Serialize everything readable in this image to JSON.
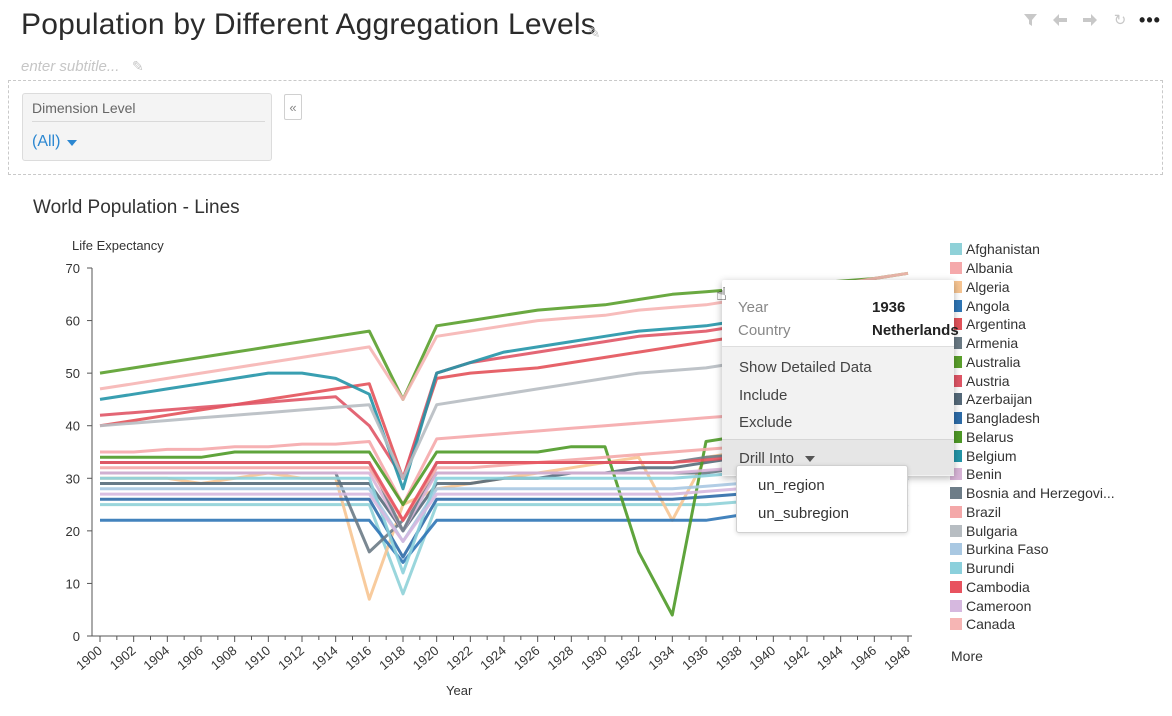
{
  "page": {
    "title": "Population by Different Aggregation Levels",
    "subtitle_placeholder": "enter subtitle...",
    "toolbar": {
      "filter_icon": "filter-icon",
      "back_icon": "back-arrow-icon",
      "forward_icon": "forward-arrow-icon",
      "refresh_icon": "refresh-icon",
      "more_label": "•••"
    }
  },
  "filter": {
    "label": "Dimension Level",
    "value": "(All)",
    "collapse_label": "«"
  },
  "popup": {
    "year_label": "Year",
    "year_value": "1936",
    "country_label": "Country",
    "country_value": "Netherlands",
    "actions": [
      "Show Detailed Data",
      "Include",
      "Exclude"
    ],
    "drill_label": "Drill Into",
    "drill_options": [
      "un_region",
      "un_subregion"
    ]
  },
  "chart_data": {
    "type": "line",
    "title": "World Population - Lines",
    "xlabel": "Year",
    "ylabel": "Life Expectancy",
    "ylim": [
      0,
      70
    ],
    "yticks": [
      "0",
      "10",
      "20",
      "30",
      "40",
      "50",
      "60",
      "70"
    ],
    "xticks": [
      "1900",
      "1902",
      "1904",
      "1906",
      "1908",
      "1910",
      "1912",
      "1914",
      "1916",
      "1918",
      "1920",
      "1922",
      "1924",
      "1926",
      "1928",
      "1930",
      "1932",
      "1934",
      "1936",
      "1938",
      "1940",
      "1942",
      "1944",
      "1946",
      "1948"
    ],
    "x": [
      1900,
      1902,
      1904,
      1906,
      1908,
      1910,
      1912,
      1914,
      1916,
      1918,
      1920,
      1922,
      1924,
      1926,
      1928,
      1930,
      1932,
      1934,
      1936,
      1938,
      1940,
      1942,
      1944,
      1946,
      1948
    ],
    "series": [
      {
        "name": "Afghanistan",
        "color": "#8fd1d8",
        "values": [
          25,
          25,
          25,
          25,
          25,
          25,
          25,
          25,
          25,
          8,
          25,
          25,
          25,
          25,
          25,
          25,
          25,
          25,
          25,
          25.5,
          26,
          26.5,
          27,
          27.5,
          28
        ]
      },
      {
        "name": "Albania",
        "color": "#f5a9ab",
        "values": [
          35,
          35,
          35.5,
          35.5,
          36,
          36,
          36.5,
          36.5,
          37,
          25,
          37.5,
          38,
          38.5,
          39,
          39.5,
          40,
          40.5,
          41,
          41.5,
          42,
          43,
          44,
          45,
          46,
          47
        ]
      },
      {
        "name": "Algeria",
        "color": "#f7c592",
        "values": [
          30,
          30,
          30,
          29,
          30,
          31,
          30,
          30,
          7,
          25,
          28,
          29,
          30,
          31,
          32,
          33,
          34,
          22,
          34,
          35,
          35,
          36,
          37,
          38,
          39
        ]
      },
      {
        "name": "Angola",
        "color": "#2f76b6",
        "values": [
          22,
          22,
          22,
          22,
          22,
          22,
          22,
          22,
          22,
          14,
          22,
          22,
          22,
          22,
          22,
          22,
          22,
          22,
          22,
          23,
          23,
          23.5,
          24,
          24.5,
          25
        ]
      },
      {
        "name": "Argentina",
        "color": "#e3525a",
        "values": [
          40,
          41,
          42,
          43,
          44,
          45,
          46,
          47,
          48,
          30,
          49,
          50,
          50.5,
          51,
          52,
          53,
          54,
          55,
          56,
          57,
          58,
          59,
          60,
          61,
          62
        ]
      },
      {
        "name": "Armenia",
        "color": "#6b7b86",
        "values": [
          31,
          31,
          31,
          31,
          31,
          31,
          31,
          31,
          16,
          22,
          31,
          31,
          31,
          31,
          31,
          31,
          31,
          31,
          31,
          32,
          33,
          34,
          35,
          36,
          37
        ]
      },
      {
        "name": "Australia",
        "color": "#5aa02c",
        "values": [
          50,
          51,
          52,
          53,
          54,
          55,
          56,
          57,
          58,
          45,
          59,
          60,
          61,
          62,
          62.5,
          63,
          64,
          65,
          65.5,
          66,
          66.5,
          67,
          67.5,
          68,
          69
        ]
      },
      {
        "name": "Austria",
        "color": "#e05566",
        "values": [
          42,
          42.5,
          43,
          43.5,
          44,
          44.5,
          45,
          45.5,
          40,
          30,
          50,
          52,
          53,
          54,
          55,
          56,
          57,
          57.5,
          58,
          59,
          60,
          61,
          62,
          63,
          64
        ]
      },
      {
        "name": "Azerbaijan",
        "color": "#566a7a",
        "values": [
          29,
          29,
          29,
          29,
          29,
          29,
          29,
          29,
          29,
          20,
          29,
          29,
          30,
          30,
          31,
          31,
          32,
          32,
          33,
          34,
          35,
          36,
          37,
          38,
          39
        ]
      },
      {
        "name": "Bangladesh",
        "color": "#2d6ca8",
        "values": [
          26,
          26,
          26,
          26,
          26,
          26,
          26,
          26,
          26,
          15,
          26,
          26,
          26,
          26,
          26,
          26,
          26,
          26,
          26.5,
          27,
          27.5,
          28,
          28.5,
          29,
          30
        ]
      },
      {
        "name": "Belarus",
        "color": "#4e9a27",
        "values": [
          34,
          34,
          34,
          34,
          35,
          35,
          35,
          35,
          35,
          25,
          35,
          35,
          35,
          35,
          36,
          36,
          16,
          4,
          37,
          38,
          39,
          40,
          41,
          42,
          43
        ]
      },
      {
        "name": "Belgium",
        "color": "#2395a8",
        "values": [
          45,
          46,
          47,
          48,
          49,
          50,
          50,
          49,
          46,
          28,
          50,
          52,
          54,
          55,
          56,
          57,
          58,
          58.5,
          59,
          60,
          61,
          62,
          63,
          64,
          65
        ]
      },
      {
        "name": "Benin",
        "color": "#d9b5d8",
        "values": [
          31,
          31,
          31,
          31,
          31,
          31,
          31,
          31,
          31,
          20,
          31,
          31,
          31,
          31,
          31,
          31,
          31,
          31,
          31.5,
          32,
          32.5,
          33,
          33.5,
          34,
          35
        ]
      },
      {
        "name": "Bosnia and Herzegovi...",
        "color": "#6d7d88",
        "values": [
          33,
          33,
          33,
          33,
          33,
          33,
          33,
          33,
          33,
          20,
          33,
          33,
          33,
          33,
          33,
          33,
          33,
          33,
          34,
          34.5,
          35,
          36,
          37,
          38,
          39
        ]
      },
      {
        "name": "Brazil",
        "color": "#f4a8a9",
        "values": [
          32,
          32,
          32,
          32,
          32,
          32,
          32,
          32,
          32,
          22,
          32,
          32,
          32.5,
          33,
          33.5,
          34,
          34.5,
          35,
          35.5,
          36,
          37,
          38,
          39,
          40,
          41
        ]
      },
      {
        "name": "Bulgaria",
        "color": "#b7bdc2",
        "values": [
          40,
          40.5,
          41,
          41.5,
          42,
          42.5,
          43,
          43.5,
          44,
          30,
          44,
          45,
          46,
          47,
          48,
          49,
          50,
          50.5,
          51,
          52,
          53,
          54,
          55,
          56,
          57
        ]
      },
      {
        "name": "Burkina Faso",
        "color": "#a9c8e2",
        "values": [
          28,
          28,
          28,
          28,
          28,
          28,
          28,
          28,
          28,
          18,
          28,
          28,
          28,
          28,
          28,
          28,
          28,
          28,
          28.5,
          29,
          29.5,
          30,
          30.5,
          31,
          32
        ]
      },
      {
        "name": "Burundi",
        "color": "#8bd0dc",
        "values": [
          30,
          30,
          30,
          30,
          30,
          30,
          30,
          30,
          30,
          12,
          30,
          30,
          30,
          30,
          30,
          30,
          30,
          30,
          30.5,
          31,
          31.5,
          32,
          32.5,
          33,
          34
        ]
      },
      {
        "name": "Cambodia",
        "color": "#e8535f",
        "values": [
          33,
          33,
          33,
          33,
          33,
          33,
          33,
          33,
          33,
          22,
          33,
          33,
          33,
          33,
          33,
          33,
          33,
          33,
          33.5,
          34,
          34.5,
          35,
          35.5,
          36,
          37
        ]
      },
      {
        "name": "Cameroon",
        "color": "#d6b8df",
        "values": [
          27,
          27,
          27,
          27,
          27,
          27,
          27,
          27,
          27,
          18,
          27,
          27,
          27,
          27,
          27,
          27,
          27,
          27,
          27.5,
          28,
          28.5,
          29,
          29.5,
          30,
          31
        ]
      },
      {
        "name": "Canada",
        "color": "#f6b5b4",
        "values": [
          47,
          48,
          49,
          50,
          51,
          52,
          53,
          54,
          55,
          45,
          57,
          58,
          59,
          60,
          60.5,
          61,
          62,
          62.5,
          63,
          64,
          65,
          66,
          67,
          68,
          69
        ]
      }
    ],
    "legend_more": "More"
  }
}
